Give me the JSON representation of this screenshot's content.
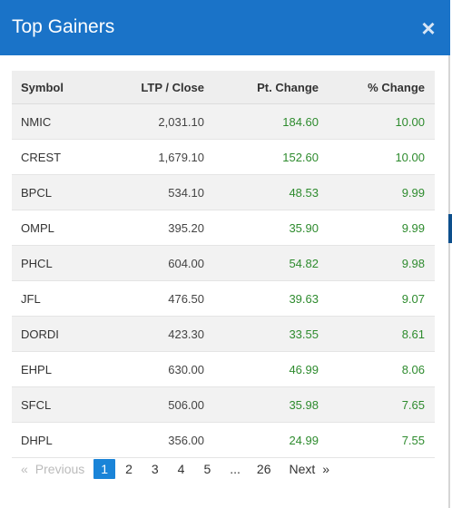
{
  "modal": {
    "title": "Top Gainers",
    "close_glyph": "×",
    "close_icon": "close-icon"
  },
  "table": {
    "headers": {
      "symbol": "Symbol",
      "ltp": "LTP / Close",
      "pt_change": "Pt. Change",
      "pct_change": "% Change"
    },
    "rows": [
      {
        "symbol": "NMIC",
        "ltp": "2,031.10",
        "pt_change": "184.60",
        "pct_change": "10.00"
      },
      {
        "symbol": "CREST",
        "ltp": "1,679.10",
        "pt_change": "152.60",
        "pct_change": "10.00"
      },
      {
        "symbol": "BPCL",
        "ltp": "534.10",
        "pt_change": "48.53",
        "pct_change": "9.99"
      },
      {
        "symbol": "OMPL",
        "ltp": "395.20",
        "pt_change": "35.90",
        "pct_change": "9.99"
      },
      {
        "symbol": "PHCL",
        "ltp": "604.00",
        "pt_change": "54.82",
        "pct_change": "9.98"
      },
      {
        "symbol": "JFL",
        "ltp": "476.50",
        "pt_change": "39.63",
        "pct_change": "9.07"
      },
      {
        "symbol": "DORDI",
        "ltp": "423.30",
        "pt_change": "33.55",
        "pct_change": "8.61"
      },
      {
        "symbol": "EHPL",
        "ltp": "630.00",
        "pt_change": "46.99",
        "pct_change": "8.06"
      },
      {
        "symbol": "SFCL",
        "ltp": "506.00",
        "pt_change": "35.98",
        "pct_change": "7.65"
      },
      {
        "symbol": "DHPL",
        "ltp": "356.00",
        "pt_change": "24.99",
        "pct_change": "7.55"
      }
    ],
    "positive_color": "#2e8b2e"
  },
  "pagination": {
    "prev_arrow": "«",
    "prev_label": "Previous",
    "pages": [
      "1",
      "2",
      "3",
      "4",
      "5"
    ],
    "ellipsis": "...",
    "last_page": "26",
    "next_label": "Next",
    "next_arrow": "»",
    "active_page": "1",
    "active_color": "#1a84d8"
  },
  "colors": {
    "header_bg": "#1a73c8"
  }
}
